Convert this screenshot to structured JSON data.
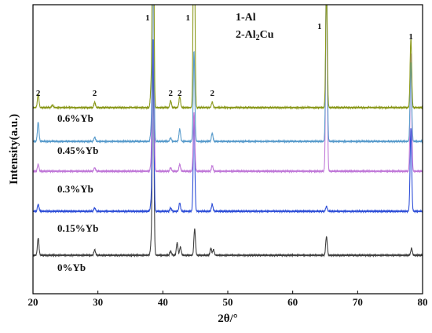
{
  "chart_data": {
    "type": "line",
    "title": "",
    "xlabel": "2θ/°",
    "ylabel": "Intensity(a.u.)",
    "xlim": [
      20,
      80
    ],
    "xticks": [
      "20",
      "30",
      "40",
      "50",
      "60",
      "70",
      "80"
    ],
    "yticks_shown": false,
    "legend_phases": [
      "1-Al",
      "2-Al2Cu"
    ],
    "peak_annotations": [
      {
        "text": "1",
        "x": 38.5
      },
      {
        "text": "1",
        "x": 44.7
      },
      {
        "text": "1",
        "x": 65.1
      },
      {
        "text": "1",
        "x": 78.2
      },
      {
        "text": "2",
        "x": 20.8
      },
      {
        "text": "2",
        "x": 29.5
      },
      {
        "text": "2",
        "x": 41.2
      },
      {
        "text": "2",
        "x": 42.6
      },
      {
        "text": "2",
        "x": 47.6
      }
    ],
    "series": [
      {
        "name": "0%Yb",
        "color": "#404040",
        "peaks": [
          {
            "x": 20.8,
            "h": 0.25
          },
          {
            "x": 29.5,
            "h": 0.08
          },
          {
            "x": 38.2,
            "h": 0.15
          },
          {
            "x": 38.5,
            "h": 3.1
          },
          {
            "x": 41.2,
            "h": 0.06
          },
          {
            "x": 42.2,
            "h": 0.18
          },
          {
            "x": 42.7,
            "h": 0.12
          },
          {
            "x": 44.9,
            "h": 0.38
          },
          {
            "x": 47.4,
            "h": 0.1
          },
          {
            "x": 47.8,
            "h": 0.08
          },
          {
            "x": 65.2,
            "h": 0.27
          },
          {
            "x": 78.3,
            "h": 0.1
          }
        ]
      },
      {
        "name": "0.15%Yb",
        "color": "#3050d8",
        "peaks": [
          {
            "x": 20.8,
            "h": 0.1
          },
          {
            "x": 29.5,
            "h": 0.05
          },
          {
            "x": 38.2,
            "h": 0.12
          },
          {
            "x": 38.5,
            "h": 2.5
          },
          {
            "x": 41.2,
            "h": 0.05
          },
          {
            "x": 42.6,
            "h": 0.12
          },
          {
            "x": 44.8,
            "h": 1.4
          },
          {
            "x": 47.6,
            "h": 0.1
          },
          {
            "x": 65.2,
            "h": 0.07
          },
          {
            "x": 78.2,
            "h": 1.2
          }
        ]
      },
      {
        "name": "0.3%Yb",
        "color": "#c078d8",
        "peaks": [
          {
            "x": 20.8,
            "h": 0.1
          },
          {
            "x": 29.5,
            "h": 0.05
          },
          {
            "x": 38.2,
            "h": 0.1
          },
          {
            "x": 38.5,
            "h": 3.5
          },
          {
            "x": 41.2,
            "h": 0.05
          },
          {
            "x": 42.6,
            "h": 0.1
          },
          {
            "x": 44.8,
            "h": 0.85
          },
          {
            "x": 47.6,
            "h": 0.08
          },
          {
            "x": 65.2,
            "h": 3.0
          },
          {
            "x": 78.2,
            "h": 1.7
          }
        ]
      },
      {
        "name": "0.45%Yb",
        "color": "#5a9ccc",
        "peaks": [
          {
            "x": 20.8,
            "h": 0.28
          },
          {
            "x": 29.5,
            "h": 0.06
          },
          {
            "x": 38.2,
            "h": 0.15
          },
          {
            "x": 38.5,
            "h": 2.9
          },
          {
            "x": 41.2,
            "h": 0.05
          },
          {
            "x": 42.6,
            "h": 0.18
          },
          {
            "x": 44.8,
            "h": 1.3
          },
          {
            "x": 47.6,
            "h": 0.12
          },
          {
            "x": 65.2,
            "h": 2.5
          },
          {
            "x": 78.2,
            "h": 1.15
          }
        ]
      },
      {
        "name": "0.6%Yb",
        "color": "#8c9a1e",
        "peaks": [
          {
            "x": 20.8,
            "h": 0.2
          },
          {
            "x": 23.0,
            "h": 0.04
          },
          {
            "x": 29.5,
            "h": 0.08
          },
          {
            "x": 38.2,
            "h": 0.3
          },
          {
            "x": 38.5,
            "h": 3.6
          },
          {
            "x": 41.2,
            "h": 0.1
          },
          {
            "x": 42.6,
            "h": 0.16
          },
          {
            "x": 44.8,
            "h": 3.6
          },
          {
            "x": 47.6,
            "h": 0.08
          },
          {
            "x": 65.2,
            "h": 1.7
          },
          {
            "x": 78.2,
            "h": 1.0
          }
        ]
      }
    ]
  }
}
